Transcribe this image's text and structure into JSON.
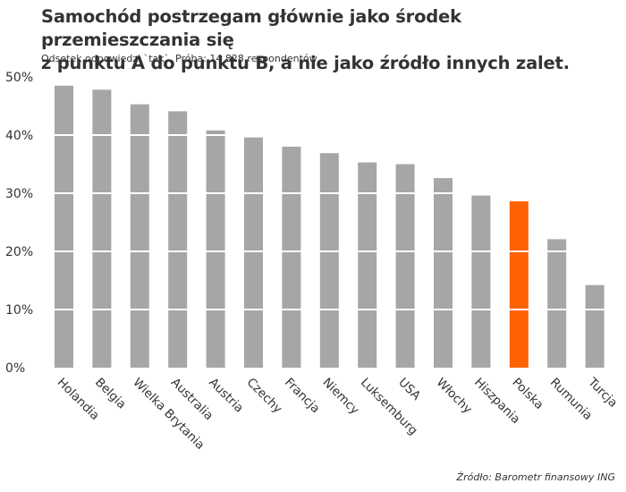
{
  "title_line1": "Samochód postrzegam głównie jako środek przemieszczania się",
  "title_line2": "z punktu A do punktu B, a nie jako źródło innych zalet.",
  "subtitle": "Odsetek odpowiedzi `tak`, Próba: 14 828 respondentów",
  "source": "Źródło: Barometr finansowy ING",
  "colors": {
    "bar": "#a6a6a6",
    "highlight": "#ff6200",
    "text": "#333333"
  },
  "chart_data": {
    "type": "bar",
    "categories": [
      "Holandia",
      "Belgia",
      "Wielka Brytania",
      "Australia",
      "Austria",
      "Czechy",
      "Francja",
      "Niemcy",
      "Luksemburg",
      "USA",
      "Włochy",
      "Hiszpania",
      "Polska",
      "Rumunia",
      "Turcja"
    ],
    "values": [
      48.5,
      47.8,
      45.3,
      44.1,
      40.8,
      39.6,
      38.0,
      36.9,
      35.3,
      35.0,
      32.6,
      29.6,
      28.6,
      22.1,
      14.2
    ],
    "highlight": "Polska",
    "ylim": [
      0,
      50
    ],
    "yticks": [
      0,
      10,
      20,
      30,
      40,
      50
    ],
    "ytick_labels": [
      "0%",
      "10%",
      "20%",
      "30%",
      "40%",
      "50%"
    ],
    "grid": "horizontal white lines across bars",
    "xlabel": "",
    "ylabel": ""
  }
}
